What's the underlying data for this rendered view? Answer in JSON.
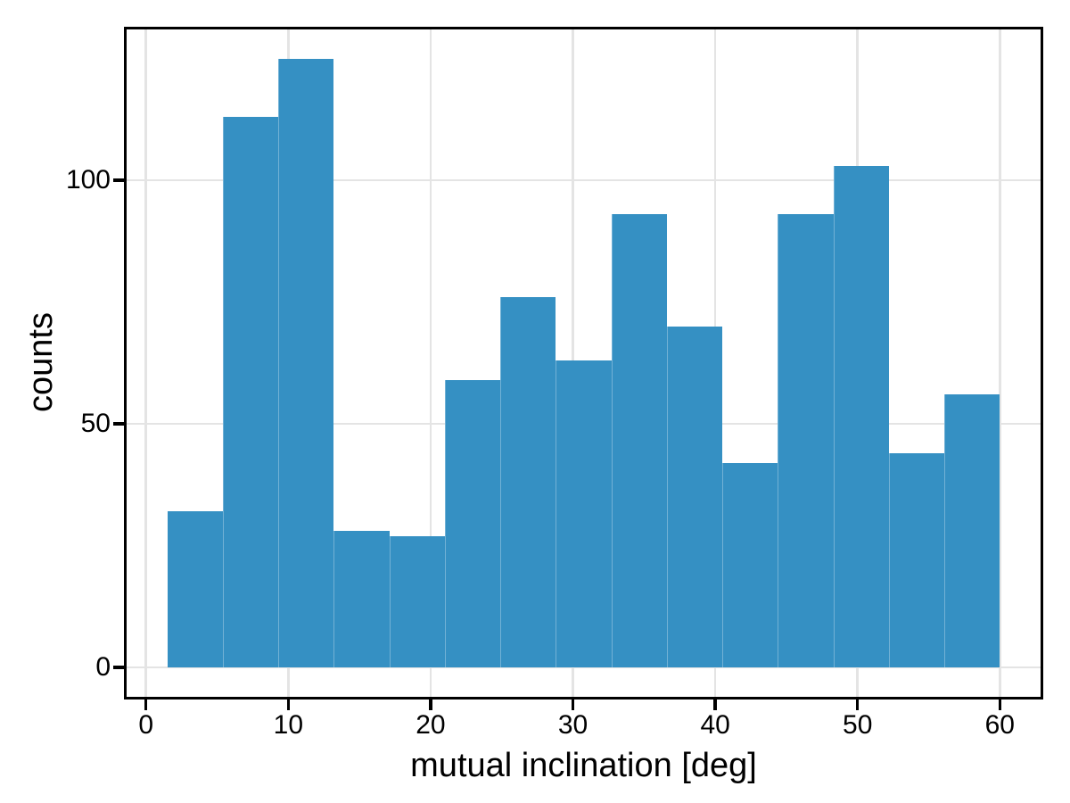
{
  "figure": {
    "background": "#ffffff"
  },
  "chart_data": {
    "type": "bar",
    "subtype": "histogram",
    "title": "",
    "xlabel": "mutual inclination [deg]",
    "ylabel": "counts",
    "bin_edges": [
      1.5,
      5.4,
      9.3,
      13.2,
      17.1,
      21.0,
      24.9,
      28.8,
      32.7,
      36.6,
      40.5,
      44.4,
      48.3,
      52.2,
      56.1,
      60.0
    ],
    "counts": [
      32,
      113,
      125,
      28,
      27,
      59,
      76,
      63,
      93,
      70,
      42,
      93,
      103,
      44,
      56
    ],
    "x_ticks": [
      0,
      10,
      20,
      30,
      40,
      50,
      60
    ],
    "y_ticks": [
      0,
      50,
      100
    ],
    "xlim": [
      -1.425,
      62.925
    ],
    "ylim": [
      -6.25,
      131.25
    ],
    "grid": true,
    "legend": false,
    "colors": {
      "bar": "#3590c3",
      "grid": "#e4e4e4",
      "spine": "#000000",
      "text": "#000000"
    }
  }
}
